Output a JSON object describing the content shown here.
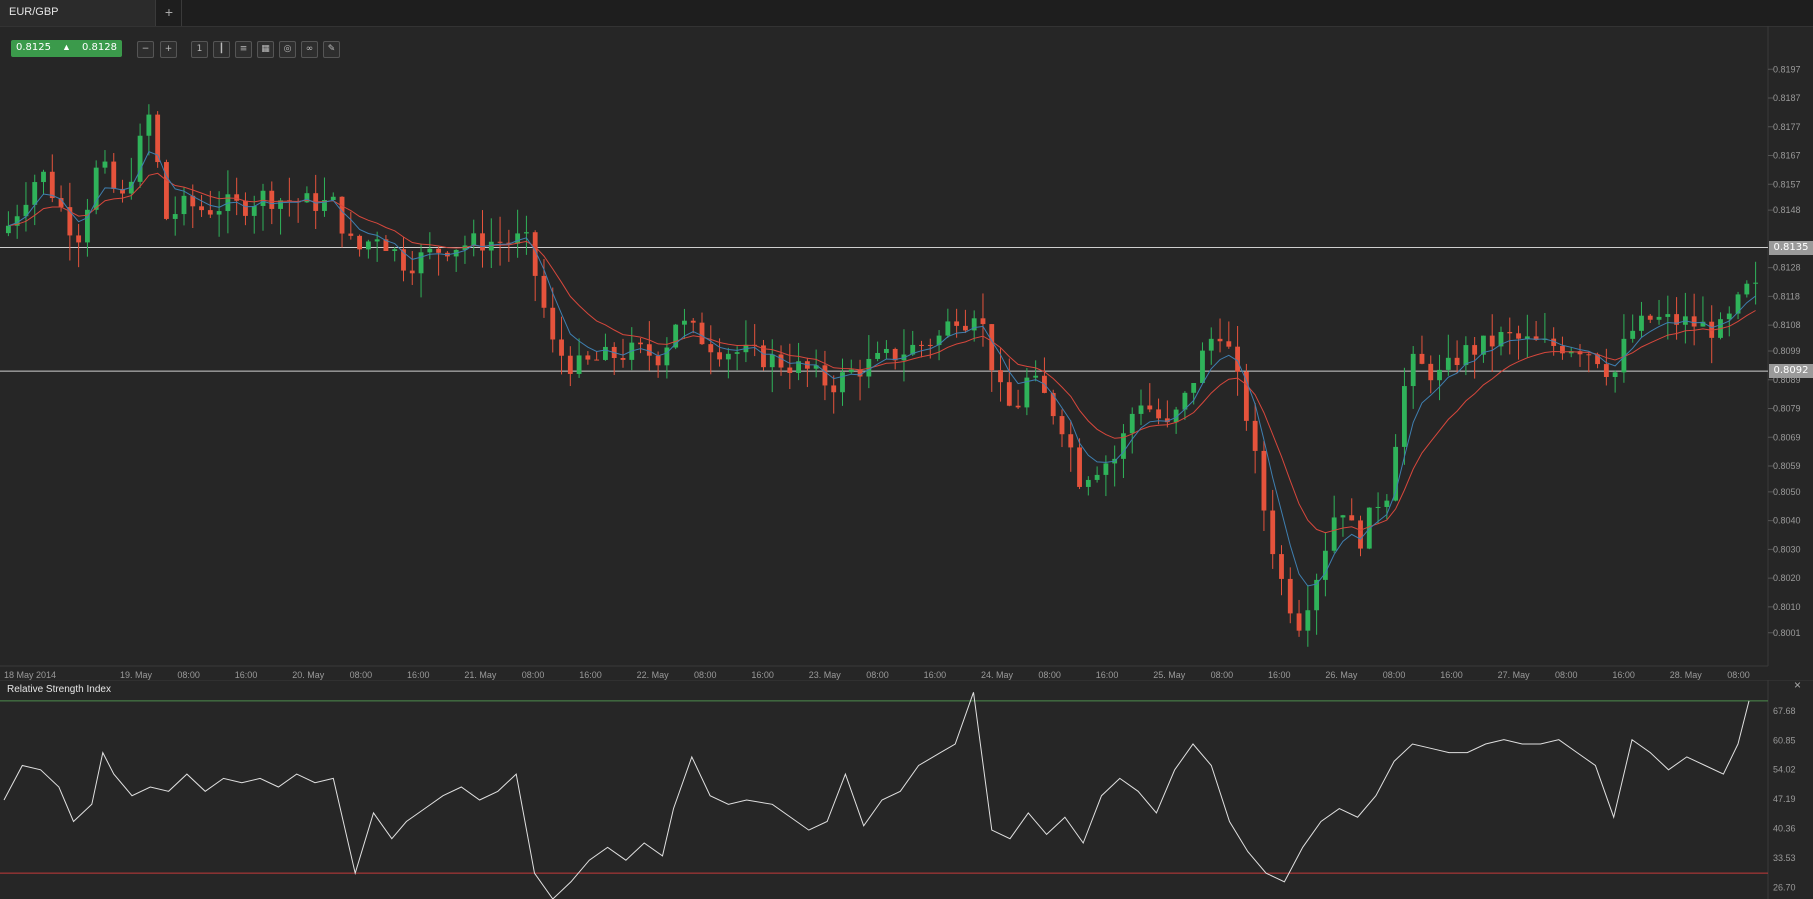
{
  "tab": {
    "title": "EUR/GBP",
    "add_label": "+"
  },
  "quote": {
    "bid": "0.8125",
    "ask": "0.8128"
  },
  "toolbar": {
    "icons": [
      "zoom-out-icon",
      "zoom-in-icon",
      "timeframe-icon",
      "candles-icon",
      "indicators-icon",
      "chart-type-icon",
      "snapshot-icon",
      "link-icon",
      "edit-icon",
      "draw-icon"
    ]
  },
  "levels": {
    "upper": "0.8135",
    "lower": "0.8092"
  },
  "rsi": {
    "title": "Relative Strength Index",
    "close_label": "×"
  },
  "colors": {
    "bull": "#2fb35a",
    "bear": "#e5533c",
    "ma_fast": "#3f7fb0",
    "ma_slow": "#d6473c",
    "rsi_line": "#e0e0e0",
    "rsi_upper": "#4c8c4c",
    "rsi_lower": "#c23a3a"
  },
  "chart_data": [
    {
      "type": "candlestick",
      "title": "EUR/GBP",
      "y_ticks": [
        "0.8197",
        "0.8187",
        "0.8177",
        "0.8167",
        "0.8157",
        "0.8148",
        "0.8128",
        "0.8118",
        "0.8108",
        "0.8099",
        "0.8089",
        "0.8079",
        "0.8069",
        "0.8059",
        "0.8050",
        "0.8040",
        "0.8030",
        "0.8020",
        "0.8010",
        "0.8001"
      ],
      "y_tick_values": [
        0.8197,
        0.8187,
        0.8177,
        0.8167,
        0.8157,
        0.8148,
        0.8128,
        0.8118,
        0.8108,
        0.8099,
        0.8089,
        0.8079,
        0.8069,
        0.8059,
        0.805,
        0.804,
        0.803,
        0.802,
        0.801,
        0.8001
      ],
      "ylim": [
        0.7995,
        0.8203
      ],
      "x_ticks": [
        "18 May 2014",
        "19. May",
        "08:00",
        "16:00",
        "20. May",
        "08:00",
        "16:00",
        "21. May",
        "08:00",
        "16:00",
        "22. May",
        "08:00",
        "16:00",
        "23. May",
        "08:00",
        "16:00",
        "24. May",
        "08:00",
        "16:00",
        "25. May",
        "08:00",
        "16:00",
        "26. May",
        "08:00",
        "16:00",
        "27. May",
        "08:00",
        "16:00",
        "28. May",
        "08:00"
      ],
      "horizontal_lines": [
        0.8135,
        0.8092
      ],
      "close_path": [
        [
          0.0,
          0.814
        ],
        [
          1.0,
          0.8162
        ],
        [
          2.0,
          0.8138
        ],
        [
          2.6,
          0.8165
        ],
        [
          3.2,
          0.815
        ],
        [
          4.0,
          0.8182
        ],
        [
          4.4,
          0.8145
        ],
        [
          5.0,
          0.815
        ],
        [
          5.5,
          0.8148
        ],
        [
          6.0,
          0.815
        ],
        [
          6.5,
          0.8149
        ],
        [
          7.0,
          0.8153
        ],
        [
          8.0,
          0.8151
        ],
        [
          9.0,
          0.815
        ],
        [
          9.6,
          0.8133
        ],
        [
          10.2,
          0.814
        ],
        [
          11.0,
          0.8129
        ],
        [
          11.5,
          0.8132
        ],
        [
          12.0,
          0.8135
        ],
        [
          13.0,
          0.8137
        ],
        [
          14.0,
          0.8137
        ],
        [
          14.2,
          0.814
        ],
        [
          14.6,
          0.8122
        ],
        [
          15.0,
          0.8101
        ],
        [
          15.6,
          0.8093
        ],
        [
          16.5,
          0.8097
        ],
        [
          17.3,
          0.8099
        ],
        [
          18.0,
          0.8097
        ],
        [
          18.3,
          0.811
        ],
        [
          18.8,
          0.8106
        ],
        [
          19.5,
          0.81
        ],
        [
          20.3,
          0.8098
        ],
        [
          21.0,
          0.8096
        ],
        [
          22.0,
          0.8092
        ],
        [
          22.6,
          0.8087
        ],
        [
          23.2,
          0.8092
        ],
        [
          24.0,
          0.8096
        ],
        [
          25.0,
          0.8101
        ],
        [
          25.6,
          0.8104
        ],
        [
          26.0,
          0.8112
        ],
        [
          26.3,
          0.811
        ],
        [
          26.6,
          0.8115
        ],
        [
          27.2,
          0.8085
        ],
        [
          27.6,
          0.8077
        ],
        [
          28.0,
          0.809
        ],
        [
          28.5,
          0.8082
        ],
        [
          29.0,
          0.8072
        ],
        [
          29.4,
          0.8055
        ],
        [
          30.0,
          0.806
        ],
        [
          30.4,
          0.8062
        ],
        [
          31.0,
          0.8083
        ],
        [
          31.4,
          0.8078
        ],
        [
          31.8,
          0.8072
        ],
        [
          32.2,
          0.808
        ],
        [
          32.6,
          0.8092
        ],
        [
          32.9,
          0.8102
        ],
        [
          33.3,
          0.8107
        ],
        [
          33.7,
          0.8089
        ],
        [
          34.0,
          0.8075
        ],
        [
          34.5,
          0.804
        ],
        [
          35.0,
          0.8015
        ],
        [
          35.4,
          0.8005
        ],
        [
          35.8,
          0.8018
        ],
        [
          36.2,
          0.8035
        ],
        [
          36.5,
          0.8048
        ],
        [
          37.0,
          0.8032
        ],
        [
          37.3,
          0.804
        ],
        [
          37.6,
          0.8048
        ],
        [
          37.8,
          0.805
        ],
        [
          38.0,
          0.8066
        ],
        [
          38.4,
          0.8095
        ],
        [
          38.8,
          0.8093
        ],
        [
          39.3,
          0.809
        ],
        [
          39.8,
          0.8098
        ],
        [
          40.5,
          0.8101
        ],
        [
          41.0,
          0.8104
        ],
        [
          42.0,
          0.8101
        ],
        [
          43.0,
          0.8101
        ],
        [
          43.5,
          0.8098
        ],
        [
          44.0,
          0.809
        ],
        [
          44.4,
          0.8105
        ],
        [
          45.0,
          0.811
        ],
        [
          46.0,
          0.8109
        ],
        [
          46.6,
          0.8107
        ],
        [
          47.0,
          0.8106
        ],
        [
          47.6,
          0.812
        ]
      ],
      "moving_averages": [
        "fast (blue)",
        "slow (red)"
      ]
    },
    {
      "type": "line",
      "title": "Relative Strength Index",
      "y_ticks": [
        "67.68",
        "60.85",
        "54.02",
        "47.19",
        "40.36",
        "33.53",
        "26.70"
      ],
      "y_tick_values": [
        67.68,
        60.85,
        54.02,
        47.19,
        40.36,
        33.53,
        26.7
      ],
      "ylim": [
        24.0,
        73.0
      ],
      "upper_line": 70.0,
      "lower_line": 30.0,
      "values": [
        [
          0,
          47
        ],
        [
          0.5,
          55
        ],
        [
          1.0,
          54
        ],
        [
          1.5,
          50
        ],
        [
          1.9,
          42
        ],
        [
          2.4,
          46
        ],
        [
          2.7,
          58
        ],
        [
          3.0,
          53
        ],
        [
          3.5,
          48
        ],
        [
          4.0,
          50
        ],
        [
          4.5,
          49
        ],
        [
          5.0,
          53
        ],
        [
          5.5,
          49
        ],
        [
          6.0,
          52
        ],
        [
          6.5,
          51
        ],
        [
          7.0,
          52
        ],
        [
          7.5,
          50
        ],
        [
          8.0,
          53
        ],
        [
          8.5,
          51
        ],
        [
          9.0,
          52
        ],
        [
          9.6,
          30
        ],
        [
          10.1,
          44
        ],
        [
          10.6,
          38
        ],
        [
          11.0,
          42
        ],
        [
          11.5,
          45
        ],
        [
          12.0,
          48
        ],
        [
          12.5,
          50
        ],
        [
          13.0,
          47
        ],
        [
          13.5,
          49
        ],
        [
          14.0,
          53
        ],
        [
          14.5,
          30
        ],
        [
          15.0,
          24
        ],
        [
          15.5,
          28
        ],
        [
          16.0,
          33
        ],
        [
          16.5,
          36
        ],
        [
          17.0,
          33
        ],
        [
          17.5,
          37
        ],
        [
          18.0,
          34
        ],
        [
          18.3,
          45
        ],
        [
          18.8,
          57
        ],
        [
          19.3,
          48
        ],
        [
          19.8,
          46
        ],
        [
          20.3,
          47
        ],
        [
          21.0,
          46
        ],
        [
          22.0,
          40
        ],
        [
          22.5,
          42
        ],
        [
          23.0,
          53
        ],
        [
          23.5,
          41
        ],
        [
          24.0,
          47
        ],
        [
          24.5,
          49
        ],
        [
          25.0,
          55
        ],
        [
          25.6,
          58
        ],
        [
          26.0,
          60
        ],
        [
          26.5,
          72
        ],
        [
          27.0,
          40
        ],
        [
          27.5,
          38
        ],
        [
          28.0,
          44
        ],
        [
          28.5,
          39
        ],
        [
          29.0,
          43
        ],
        [
          29.5,
          37
        ],
        [
          30.0,
          48
        ],
        [
          30.5,
          52
        ],
        [
          31.0,
          49
        ],
        [
          31.5,
          44
        ],
        [
          32.0,
          54
        ],
        [
          32.5,
          60
        ],
        [
          33.0,
          55
        ],
        [
          33.5,
          42
        ],
        [
          34.0,
          35
        ],
        [
          34.5,
          30
        ],
        [
          35.0,
          28
        ],
        [
          35.5,
          36
        ],
        [
          36.0,
          42
        ],
        [
          36.5,
          45
        ],
        [
          37.0,
          43
        ],
        [
          37.5,
          48
        ],
        [
          38.0,
          56
        ],
        [
          38.5,
          60
        ],
        [
          39.0,
          59
        ],
        [
          39.5,
          58
        ],
        [
          40.0,
          58
        ],
        [
          40.5,
          60
        ],
        [
          41.0,
          61
        ],
        [
          41.5,
          60
        ],
        [
          42.0,
          60
        ],
        [
          42.5,
          61
        ],
        [
          43.0,
          58
        ],
        [
          43.5,
          55
        ],
        [
          44.0,
          43
        ],
        [
          44.5,
          61
        ],
        [
          45.0,
          58
        ],
        [
          45.5,
          54
        ],
        [
          46.0,
          57
        ],
        [
          46.5,
          55
        ],
        [
          47.0,
          53
        ],
        [
          47.4,
          60
        ],
        [
          47.7,
          70
        ]
      ]
    }
  ]
}
